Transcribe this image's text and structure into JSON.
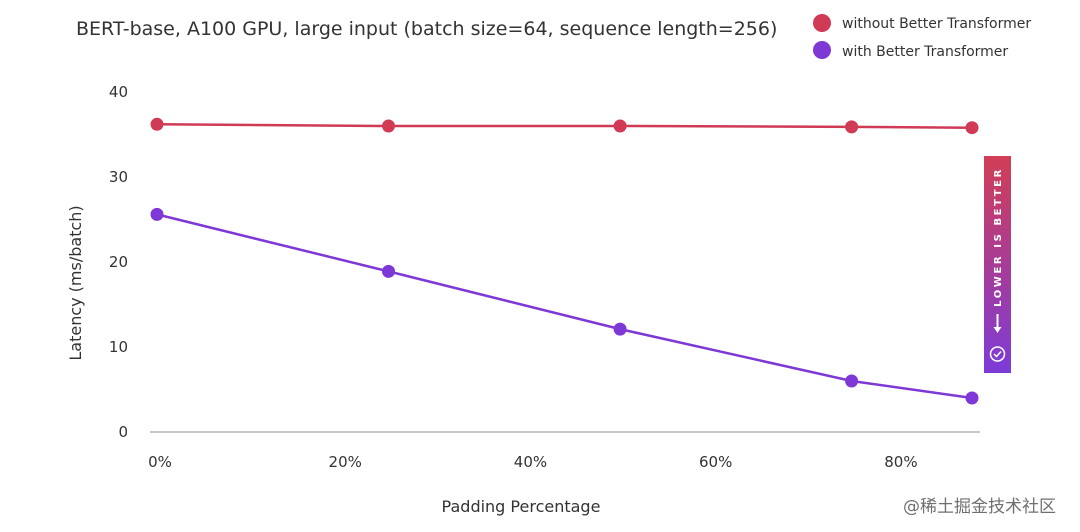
{
  "chart_data": {
    "type": "line",
    "title": "BERT-base, A100 GPU, large input (batch size=64, sequence length=256)",
    "xlabel": "Padding Percentage",
    "ylabel": "Latency (ms/batch)",
    "xlim": [
      0,
      88
    ],
    "ylim": [
      0,
      40
    ],
    "x_ticks": [
      0,
      20,
      40,
      60,
      80
    ],
    "x_tick_labels": [
      "0%",
      "20%",
      "40%",
      "60%",
      "80%"
    ],
    "y_ticks": [
      0,
      10,
      20,
      30,
      40
    ],
    "y_tick_labels": [
      "0",
      "10",
      "20",
      "30",
      "40"
    ],
    "grid": false,
    "legend_position": "top-right",
    "x": [
      0,
      25,
      50,
      75,
      88
    ],
    "series": [
      {
        "name": "without Better Transformer",
        "color": "#d03a55",
        "values": [
          36.2,
          36.0,
          36.0,
          35.9,
          35.8
        ]
      },
      {
        "name": "with Better Transformer",
        "color": "#7e38d6",
        "values": [
          25.6,
          18.9,
          12.1,
          6.0,
          4.0
        ]
      }
    ],
    "annotation": {
      "text": "LOWER IS BETTER",
      "icon": "check-circle-icon",
      "gradient_top": "#d13e55",
      "gradient_bottom": "#7d3bd8"
    }
  },
  "watermark": "@稀土掘金技术社区"
}
